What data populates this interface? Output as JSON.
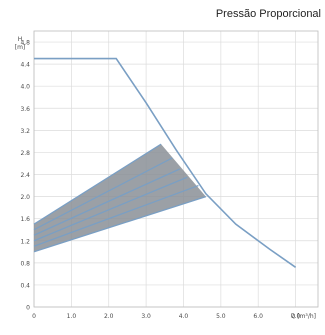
{
  "chart_data": {
    "type": "line",
    "title": "Pressão Proporcional",
    "ylabel_lines": [
      "H",
      "[m]"
    ],
    "xlabel": "Q [m³/h]",
    "xlim": [
      0,
      7.6
    ],
    "ylim": [
      0,
      5.0
    ],
    "x_ticks": [
      0,
      1.0,
      2.0,
      3.0,
      4.0,
      5.0,
      6.0,
      7.0
    ],
    "x_tick_labels": [
      "0",
      "1.0",
      "2.0",
      "3.0",
      "4.0",
      "5.0",
      "6.0",
      "7.0"
    ],
    "y_ticks": [
      0,
      0.4,
      0.8,
      1.2,
      1.6,
      2.0,
      2.4,
      2.8,
      3.2,
      3.6,
      4.0,
      4.4,
      4.8
    ],
    "y_tick_labels": [
      "0",
      "0.4",
      "0.8",
      "1.2",
      "1.6",
      "2.0",
      "2.4",
      "2.8",
      "3.2",
      "3.6",
      "4.0",
      "4.4",
      "4.8"
    ],
    "grid": true,
    "max_curve": {
      "x": [
        0,
        2.2,
        3.0,
        3.8,
        4.6,
        5.4,
        6.3,
        7.0
      ],
      "y": [
        4.5,
        4.5,
        3.7,
        2.85,
        2.05,
        1.5,
        1.05,
        0.72
      ]
    },
    "proportional_lines": [
      {
        "x": [
          0,
          3.4
        ],
        "y": [
          1.5,
          2.95
        ]
      },
      {
        "x": [
          0,
          3.7
        ],
        "y": [
          1.4,
          2.7
        ]
      },
      {
        "x": [
          0,
          3.9
        ],
        "y": [
          1.3,
          2.5
        ]
      },
      {
        "x": [
          0,
          4.1
        ],
        "y": [
          1.2,
          2.35
        ]
      },
      {
        "x": [
          0,
          4.4
        ],
        "y": [
          1.1,
          2.2
        ]
      },
      {
        "x": [
          0,
          4.6
        ],
        "y": [
          1.0,
          2.0
        ]
      }
    ],
    "band_color": "#8a8f96",
    "line_color": "#7a9fc4"
  }
}
